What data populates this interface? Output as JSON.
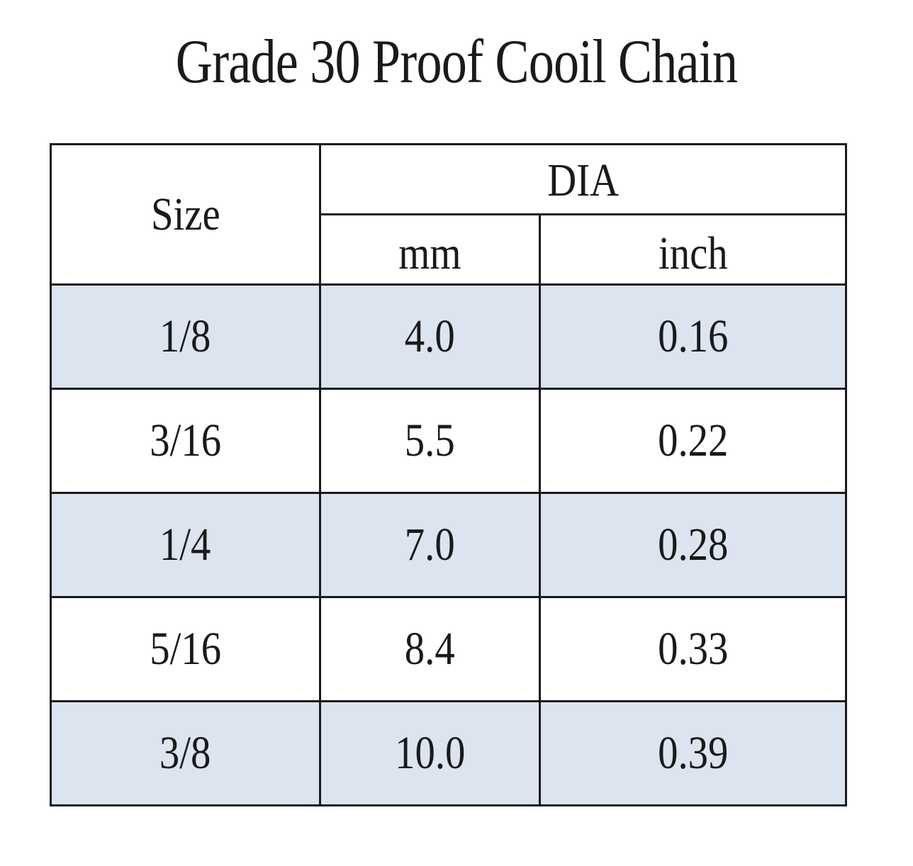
{
  "title": "Grade 30 Proof Cooil Chain",
  "table": {
    "header": {
      "size": "Size",
      "dia": "DIA",
      "mm": "mm",
      "inch": "inch"
    },
    "rows": [
      {
        "size": "1/8",
        "mm": "4.0",
        "inch": "0.16"
      },
      {
        "size": "3/16",
        "mm": "5.5",
        "inch": "0.22"
      },
      {
        "size": "1/4",
        "mm": "7.0",
        "inch": "0.28"
      },
      {
        "size": "5/16",
        "mm": "8.4",
        "inch": "0.33"
      },
      {
        "size": "3/8",
        "mm": "10.0",
        "inch": "0.39"
      }
    ]
  },
  "colors": {
    "shaded_row": "#dbe4ef",
    "border": "#1a1a1a"
  }
}
